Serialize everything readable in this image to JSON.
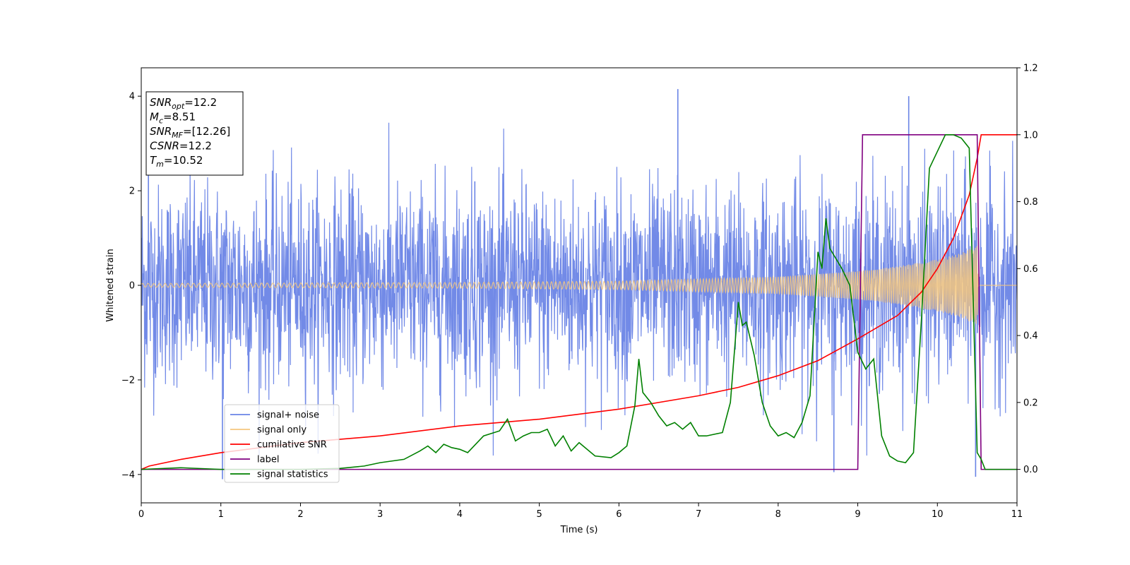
{
  "chart_data": {
    "type": "line",
    "xlabel": "Time (s)",
    "ylabel": "Whitened strain",
    "xlim": [
      0,
      11
    ],
    "ylim_left": [
      -4.6,
      4.6
    ],
    "ylim_right": [
      -0.1,
      1.2
    ],
    "xticks": [
      0,
      1,
      2,
      3,
      4,
      5,
      6,
      7,
      8,
      9,
      10,
      11
    ],
    "yticks_left": [
      -4,
      -2,
      0,
      2,
      4
    ],
    "yticks_right": [
      "0.0",
      "0.2",
      "0.4",
      "0.6",
      "0.8",
      "1.0",
      "1.2"
    ],
    "info_box": {
      "lines": [
        {
          "main": "SNR",
          "sub": "opt",
          "value": "=12.2"
        },
        {
          "main": "M",
          "sub": "c",
          "value": "=8.51"
        },
        {
          "main": "SNR",
          "sub": "MF",
          "value": "=[12.26]"
        },
        {
          "main": "CSNR",
          "sub": "",
          "value": "=12.2"
        },
        {
          "main": "T",
          "sub": "m",
          "value": "=10.52"
        }
      ]
    },
    "legend": {
      "location": "lower-left",
      "entries": [
        {
          "label": "signal+ noise",
          "color": "#6a84e6"
        },
        {
          "label": "signal only",
          "color": "#f5c77e"
        },
        {
          "label": "cumilative SNR",
          "color": "#ff0000"
        },
        {
          "label": "label",
          "color": "#800080"
        },
        {
          "label": "signal statistics",
          "color": "#008000"
        }
      ]
    },
    "series": [
      {
        "name": "signal+ noise",
        "axis": "left",
        "color": "#6a84e6",
        "kind": "noise",
        "amplitude_std": 1.0,
        "notable_peaks": [
          [
            0.09,
            2.6
          ],
          [
            1.02,
            -4.1
          ],
          [
            4.19,
            2.2
          ],
          [
            6.74,
            4.15
          ],
          [
            9.64,
            4.0
          ],
          [
            10.48,
            -4.05
          ],
          [
            8.7,
            -3.95
          ]
        ]
      },
      {
        "name": "signal only",
        "axis": "left",
        "color": "#f5c77e",
        "kind": "chirp",
        "envelope": [
          [
            0,
            0.04
          ],
          [
            2,
            0.05
          ],
          [
            4,
            0.06
          ],
          [
            6,
            0.09
          ],
          [
            8,
            0.18
          ],
          [
            9,
            0.3
          ],
          [
            9.5,
            0.4
          ],
          [
            10,
            0.55
          ],
          [
            10.3,
            0.68
          ],
          [
            10.5,
            0.85
          ],
          [
            10.52,
            0.0
          ],
          [
            11,
            0.0
          ]
        ]
      },
      {
        "name": "cumilative SNR",
        "axis": "right",
        "color": "#ff0000",
        "x": [
          0,
          0.1,
          0.5,
          1,
          2,
          3,
          4,
          5,
          6,
          7,
          7.5,
          8,
          8.5,
          9,
          9.5,
          9.8,
          10,
          10.2,
          10.4,
          10.5,
          10.55,
          11
        ],
        "y": [
          0.0,
          0.01,
          0.03,
          0.05,
          0.08,
          0.1,
          0.13,
          0.15,
          0.18,
          0.22,
          0.245,
          0.28,
          0.325,
          0.39,
          0.46,
          0.53,
          0.6,
          0.69,
          0.82,
          0.93,
          1.0,
          1.0
        ]
      },
      {
        "name": "label",
        "axis": "right",
        "color": "#800080",
        "x": [
          0,
          9.0,
          9.06,
          10.5,
          10.55,
          11
        ],
        "y": [
          0.0,
          0.0,
          1.0,
          1.0,
          0.0,
          0.0
        ]
      },
      {
        "name": "signal statistics",
        "axis": "right",
        "color": "#008000",
        "x": [
          0,
          0.5,
          1,
          1.5,
          2,
          2.5,
          2.8,
          3,
          3.3,
          3.5,
          3.6,
          3.7,
          3.8,
          3.9,
          4.0,
          4.1,
          4.2,
          4.3,
          4.5,
          4.6,
          4.7,
          4.8,
          4.9,
          5.0,
          5.1,
          5.2,
          5.3,
          5.4,
          5.5,
          5.7,
          5.9,
          6.0,
          6.1,
          6.2,
          6.25,
          6.3,
          6.4,
          6.5,
          6.6,
          6.7,
          6.8,
          6.9,
          7.0,
          7.1,
          7.3,
          7.4,
          7.5,
          7.55,
          7.6,
          7.7,
          7.75,
          7.8,
          7.9,
          8.0,
          8.1,
          8.2,
          8.3,
          8.4,
          8.5,
          8.55,
          8.6,
          8.65,
          8.7,
          8.8,
          8.9,
          9.0,
          9.1,
          9.2,
          9.3,
          9.4,
          9.5,
          9.6,
          9.7,
          9.8,
          9.9,
          10.0,
          10.1,
          10.2,
          10.3,
          10.4,
          10.5,
          10.55,
          10.6,
          11
        ],
        "y": [
          0.0,
          0.005,
          0.0,
          0.0,
          0.0,
          0.003,
          0.01,
          0.02,
          0.03,
          0.055,
          0.07,
          0.05,
          0.075,
          0.065,
          0.06,
          0.05,
          0.075,
          0.1,
          0.115,
          0.15,
          0.085,
          0.1,
          0.11,
          0.11,
          0.12,
          0.07,
          0.1,
          0.055,
          0.08,
          0.04,
          0.035,
          0.05,
          0.07,
          0.19,
          0.33,
          0.23,
          0.2,
          0.16,
          0.13,
          0.14,
          0.12,
          0.14,
          0.1,
          0.1,
          0.11,
          0.2,
          0.5,
          0.43,
          0.44,
          0.34,
          0.27,
          0.2,
          0.13,
          0.1,
          0.11,
          0.095,
          0.14,
          0.22,
          0.65,
          0.6,
          0.75,
          0.66,
          0.64,
          0.6,
          0.55,
          0.35,
          0.3,
          0.33,
          0.1,
          0.04,
          0.025,
          0.02,
          0.05,
          0.45,
          0.9,
          0.95,
          1.0,
          1.0,
          0.99,
          0.96,
          0.05,
          0.03,
          0.0,
          0.0
        ]
      }
    ]
  }
}
